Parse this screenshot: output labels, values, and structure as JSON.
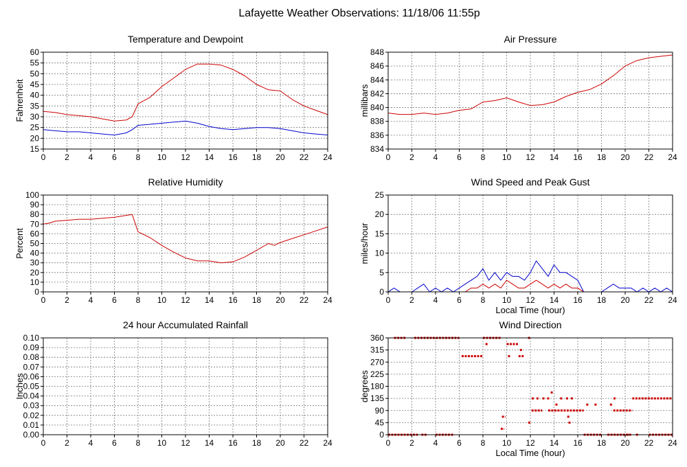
{
  "title": "Lafayette Weather Observations: 11/18/06 11:55p",
  "colors": {
    "temperature": "#cc0000",
    "dewpoint": "#0000cc",
    "gust": "#0000cc",
    "speed": "#cc0000",
    "grid": "#777777"
  },
  "chart_data": [
    {
      "id": "temp",
      "type": "line",
      "title": "Temperature and Dewpoint",
      "xlabel": "",
      "ylabel": "Fahrenheit",
      "xlim": [
        0,
        24
      ],
      "xticks": [
        0,
        2,
        4,
        6,
        8,
        10,
        12,
        14,
        16,
        18,
        20,
        22,
        24
      ],
      "ylim": [
        15,
        60
      ],
      "yticks": [
        15,
        20,
        25,
        30,
        35,
        40,
        45,
        50,
        55,
        60
      ],
      "grid": true,
      "series": [
        {
          "color": "#cc0000",
          "x": [
            0,
            1,
            2,
            3,
            4,
            5,
            6,
            7,
            7.5,
            8,
            9,
            10,
            11,
            12,
            13,
            14,
            15,
            16,
            17,
            18,
            19,
            20,
            21,
            22,
            23,
            24
          ],
          "y": [
            32.5,
            32,
            31,
            30.5,
            30,
            29,
            28,
            28.5,
            30,
            36,
            39,
            44,
            48,
            52,
            54.5,
            54.5,
            54,
            52,
            49,
            45,
            42.5,
            42,
            38,
            35,
            33,
            31
          ]
        },
        {
          "color": "#0000cc",
          "x": [
            0,
            1,
            2,
            3,
            4,
            5,
            6,
            7,
            7.5,
            8,
            9,
            10,
            11,
            12,
            13,
            14,
            15,
            16,
            17,
            18,
            19,
            20,
            21,
            22,
            23,
            24
          ],
          "y": [
            24,
            23.5,
            23,
            23,
            22.5,
            22,
            21.5,
            22.5,
            24,
            26,
            26.5,
            27,
            27.5,
            28,
            27,
            25.5,
            24.5,
            24,
            24.5,
            25,
            25,
            24.5,
            23.5,
            22.5,
            22,
            21.5
          ]
        }
      ]
    },
    {
      "id": "pressure",
      "type": "line",
      "title": "Air Pressure",
      "xlabel": "",
      "ylabel": "millibars",
      "xlim": [
        0,
        24
      ],
      "xticks": [
        0,
        2,
        4,
        6,
        8,
        10,
        12,
        14,
        16,
        18,
        20,
        22,
        24
      ],
      "ylim": [
        834,
        848
      ],
      "yticks": [
        834,
        836,
        838,
        840,
        842,
        844,
        846,
        848
      ],
      "grid": true,
      "series": [
        {
          "color": "#cc0000",
          "x": [
            0,
            1,
            2,
            3,
            4,
            5,
            6,
            7,
            8,
            9,
            10,
            11,
            12,
            13,
            14,
            15,
            16,
            17,
            18,
            19,
            20,
            21,
            22,
            23,
            24
          ],
          "y": [
            839.2,
            839,
            839,
            839.2,
            839,
            839.2,
            839.6,
            839.8,
            840.8,
            841,
            841.4,
            840.8,
            840.3,
            840.4,
            840.8,
            841.6,
            842.2,
            842.6,
            843.4,
            844.6,
            846,
            846.8,
            847.2,
            847.4,
            847.6
          ]
        }
      ]
    },
    {
      "id": "humidity",
      "type": "line",
      "title": "Relative Humidity",
      "xlabel": "",
      "ylabel": "Percent",
      "xlim": [
        0,
        24
      ],
      "xticks": [
        0,
        2,
        4,
        6,
        8,
        10,
        12,
        14,
        16,
        18,
        20,
        22,
        24
      ],
      "ylim": [
        0,
        100
      ],
      "yticks": [
        0,
        10,
        20,
        30,
        40,
        50,
        60,
        70,
        80,
        90,
        100
      ],
      "grid": true,
      "series": [
        {
          "color": "#cc0000",
          "x": [
            0,
            0.5,
            1,
            2,
            3,
            4,
            5,
            6,
            7,
            7.5,
            8,
            9,
            10,
            11,
            12,
            13,
            14,
            15,
            16,
            17,
            18,
            19,
            19.5,
            20,
            21,
            22,
            23,
            24
          ],
          "y": [
            70,
            71,
            73,
            74,
            75,
            75,
            76,
            77,
            79,
            80,
            62,
            56,
            48,
            41,
            35,
            32,
            32,
            30,
            31,
            36,
            43,
            50,
            48,
            51,
            55,
            59,
            63,
            67
          ]
        }
      ]
    },
    {
      "id": "wind",
      "type": "line",
      "title": "Wind Speed and Peak Gust",
      "xlabel": "Local Time (hour)",
      "ylabel": "miles/hour",
      "xlim": [
        0,
        24
      ],
      "xticks": [
        0,
        2,
        4,
        6,
        8,
        10,
        12,
        14,
        16,
        18,
        20,
        22,
        24
      ],
      "ylim": [
        0,
        25
      ],
      "yticks": [
        0,
        5,
        10,
        15,
        20,
        25
      ],
      "grid": true,
      "series": [
        {
          "color": "#0000cc",
          "x": [
            0,
            0.5,
            1,
            1.5,
            2,
            2.5,
            3,
            3.5,
            4,
            4.5,
            5,
            5.5,
            6,
            6.5,
            7,
            7.5,
            8,
            8.5,
            9,
            9.5,
            10,
            10.5,
            11,
            11.5,
            12,
            12.5,
            13,
            13.5,
            14,
            14.5,
            15,
            15.5,
            16,
            16.5,
            17,
            17.5,
            18,
            18.5,
            19,
            19.5,
            20,
            20.5,
            21,
            21.5,
            22,
            22.5,
            23,
            23.5,
            24
          ],
          "y": [
            0,
            1,
            0,
            0,
            0,
            1,
            2,
            0,
            1,
            0,
            1,
            0,
            1,
            2,
            3,
            4,
            6,
            3,
            5,
            3,
            5,
            4,
            4,
            3,
            5,
            8,
            6,
            4,
            7,
            5,
            5,
            4,
            3,
            0,
            0,
            0,
            0,
            1,
            2,
            1,
            1,
            1,
            0,
            1,
            0,
            1,
            0,
            1,
            0
          ]
        },
        {
          "color": "#cc0000",
          "x": [
            0,
            0.5,
            1,
            1.5,
            2,
            2.5,
            3,
            3.5,
            4,
            4.5,
            5,
            5.5,
            6,
            6.5,
            7,
            7.5,
            8,
            8.5,
            9,
            9.5,
            10,
            10.5,
            11,
            11.5,
            12,
            12.5,
            13,
            13.5,
            14,
            14.5,
            15,
            15.5,
            16,
            16.5,
            17,
            17.5,
            18,
            18.5,
            19,
            19.5,
            20,
            20.5,
            21,
            21.5,
            22,
            22.5,
            23,
            23.5,
            24
          ],
          "y": [
            0,
            0,
            0,
            0,
            0,
            0,
            0,
            0,
            0,
            0,
            0,
            0,
            0,
            0,
            1,
            1,
            2,
            1,
            2,
            1,
            3,
            2,
            1,
            1,
            2,
            3,
            2,
            1,
            2,
            1,
            2,
            1,
            1,
            0,
            0,
            0,
            0,
            0,
            0,
            0,
            0,
            0,
            0,
            0,
            0,
            0,
            0,
            0,
            0
          ]
        }
      ]
    },
    {
      "id": "rain",
      "type": "line",
      "title": "24 hour Accumulated Rainfall",
      "xlabel": "",
      "ylabel": "Inches",
      "xlim": [
        0,
        24
      ],
      "xticks": [
        0,
        2,
        4,
        6,
        8,
        10,
        12,
        14,
        16,
        18,
        20,
        22,
        24
      ],
      "ylim": [
        0,
        0.1
      ],
      "yticks": [
        0,
        0.01,
        0.02,
        0.03,
        0.04,
        0.05,
        0.06,
        0.07,
        0.08,
        0.09,
        0.1
      ],
      "ytick_labels": [
        "0.00",
        "0.01",
        "0.02",
        "0.03",
        "0.04",
        "0.05",
        "0.06",
        "0.07",
        "0.08",
        "0.09",
        "0.10"
      ],
      "grid": true,
      "series": [
        {
          "color": "#cc0000",
          "x": [
            0,
            24
          ],
          "y": [
            0,
            0
          ]
        }
      ]
    },
    {
      "id": "direction",
      "type": "scatter",
      "title": "Wind Direction",
      "xlabel": "Local Time (hour)",
      "ylabel": "degrees",
      "xlim": [
        0,
        24
      ],
      "xticks": [
        0,
        2,
        4,
        6,
        8,
        10,
        12,
        14,
        16,
        18,
        20,
        22,
        24
      ],
      "ylim": [
        0,
        360
      ],
      "yticks": [
        0,
        45,
        90,
        135,
        180,
        225,
        270,
        315,
        360
      ],
      "grid": true,
      "series": [
        {
          "color": "#cc0000",
          "segments": [
            [
              0,
              2.5,
              0
            ],
            [
              0.5,
              1.5,
              360
            ],
            [
              2.2,
              6.0,
              360
            ],
            [
              2.8,
              3.3,
              0
            ],
            [
              4.0,
              5.5,
              0
            ],
            [
              6.2,
              8.0,
              292
            ],
            [
              8.0,
              9.5,
              360
            ],
            [
              9.5,
              9.8,
              22
            ],
            [
              9.6,
              9.9,
              67
            ],
            [
              10.0,
              11.0,
              337
            ],
            [
              11.0,
              11.5,
              292
            ],
            [
              11.8,
              12.0,
              360
            ],
            [
              12.1,
              13.0,
              90
            ],
            [
              13.5,
              16.5,
              90
            ],
            [
              16.5,
              18.0,
              0
            ],
            [
              18.5,
              20.5,
              0
            ],
            [
              19.0,
              20.6,
              90
            ],
            [
              20.6,
              24.0,
              135
            ],
            [
              22.0,
              24.0,
              0
            ]
          ],
          "points": [
            [
              8.3,
              337
            ],
            [
              10.2,
              292
            ],
            [
              11.2,
              315
            ],
            [
              11.9,
              45
            ],
            [
              12.2,
              135
            ],
            [
              12.6,
              135
            ],
            [
              13.1,
              135
            ],
            [
              13.5,
              135
            ],
            [
              13.8,
              157
            ],
            [
              14.2,
              112
            ],
            [
              14.6,
              135
            ],
            [
              15.1,
              135
            ],
            [
              15.2,
              67
            ],
            [
              15.3,
              45
            ],
            [
              15.5,
              135
            ],
            [
              16.8,
              112
            ],
            [
              17.5,
              112
            ],
            [
              18.8,
              112
            ],
            [
              19.1,
              135
            ],
            [
              20.2,
              0
            ],
            [
              21.0,
              0
            ]
          ]
        }
      ]
    }
  ]
}
